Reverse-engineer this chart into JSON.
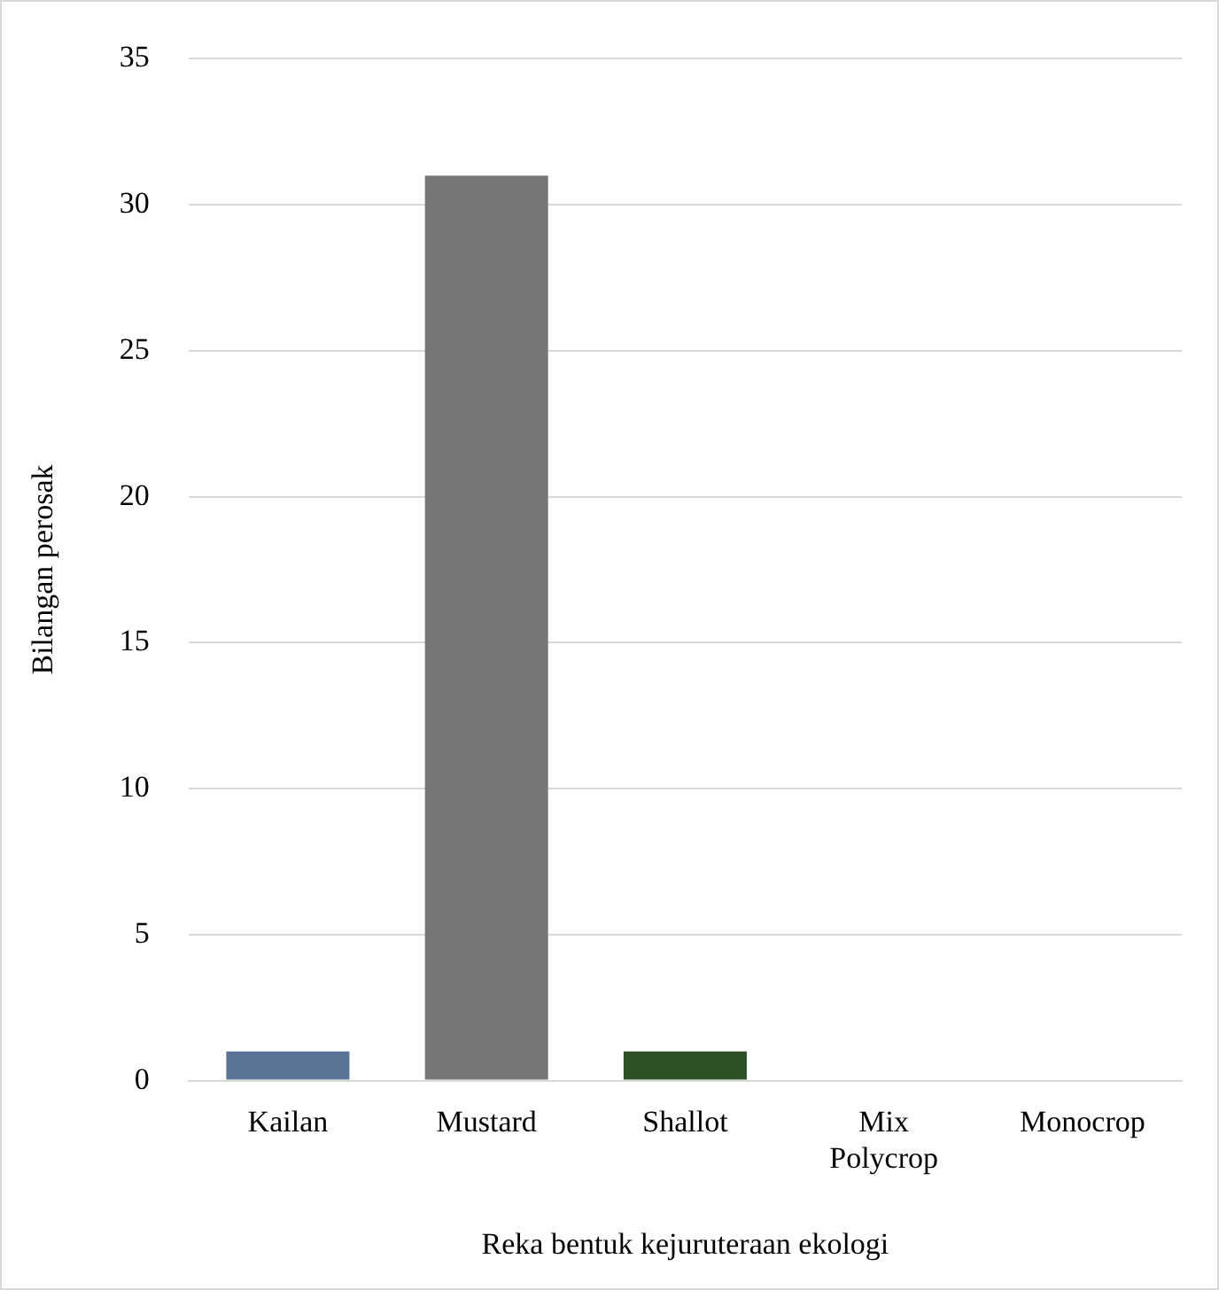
{
  "chart_data": {
    "type": "bar",
    "xlabel": "Reka bentuk kejuruteraan ekologi",
    "ylabel": "Bilangan perosak",
    "categories": [
      "Kailan",
      "Mustard",
      "Shallot",
      "Mix Polycrop",
      "Monocrop"
    ],
    "values": [
      1,
      31,
      1,
      0,
      0
    ],
    "colors": [
      "#5b7496",
      "#777777",
      "#2d4f24",
      "#a5a5a5",
      "#4472c4"
    ],
    "ylim": [
      0,
      35
    ],
    "yticks": [
      0,
      5,
      10,
      15,
      20,
      25,
      30,
      35
    ],
    "grid": "y",
    "legend": false
  }
}
